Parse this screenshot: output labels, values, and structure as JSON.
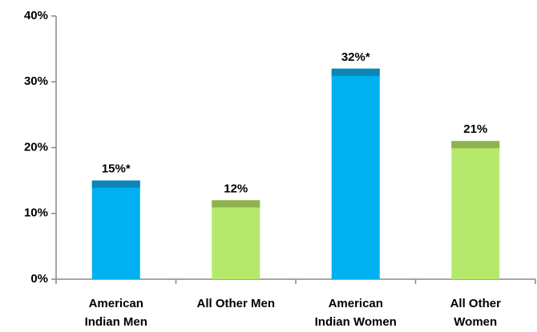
{
  "chart_data": {
    "type": "bar",
    "categories": [
      [
        "American",
        "Indian  Men"
      ],
      [
        "All Other  Men"
      ],
      [
        "American",
        "Indian Women"
      ],
      [
        "All Other",
        "Women"
      ]
    ],
    "values": [
      15,
      12,
      32,
      21
    ],
    "value_labels": [
      "15%*",
      "12%",
      "32%*",
      "21%"
    ],
    "colors": [
      "#00b0f0",
      "#b5e96c",
      "#00b0f0",
      "#b5e96c"
    ],
    "cap_colors": [
      "#0b86b6",
      "#8eb24e",
      "#0b86b6",
      "#8eb24e"
    ],
    "ylim": [
      0,
      40
    ],
    "yticks": [
      {
        "value": 0,
        "label": "0%"
      },
      {
        "value": 10,
        "label": "10%"
      },
      {
        "value": 20,
        "label": "20%"
      },
      {
        "value": 30,
        "label": "30%"
      },
      {
        "value": 40,
        "label": "40%"
      }
    ]
  }
}
